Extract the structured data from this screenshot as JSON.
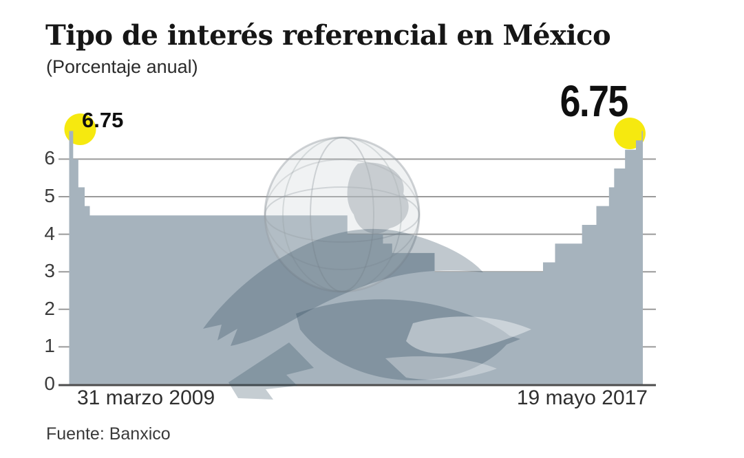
{
  "title": "Tipo de interés referencial en México",
  "subtitle": "(Porcentaje anual)",
  "source": "Fuente: Banxico",
  "annotations": {
    "start_label": "6.75",
    "end_label": "6.75"
  },
  "x_axis": {
    "start_label": "31 marzo 2009",
    "end_label": "19 mayo 2017"
  },
  "y_axis": {
    "tick_labels": [
      "0",
      "1",
      "2",
      "3",
      "4",
      "5",
      "6"
    ]
  },
  "watermark_icon": "eagle-globe-watermark",
  "colors": {
    "area": "#a6b3bd",
    "gridline": "#9a9a9a",
    "axis_line": "#4d4d4d",
    "highlight": "#f6e90f",
    "text": "#161616"
  },
  "chart_data": {
    "type": "area",
    "subtype": "step",
    "title": "Tipo de interés referencial en México",
    "xlabel": "",
    "ylabel": "Porcentaje anual",
    "ylim": [
      0,
      7
    ],
    "x_range_labels": [
      "31 marzo 2009",
      "19 mayo 2017"
    ],
    "grid": true,
    "highlight_points": [
      {
        "position": "start",
        "value": 6.75
      },
      {
        "position": "end",
        "value": 6.75
      }
    ],
    "steps": [
      {
        "x_frac": 0.0,
        "value": 6.75
      },
      {
        "x_frac": 0.007,
        "value": 6.0
      },
      {
        "x_frac": 0.016,
        "value": 5.25
      },
      {
        "x_frac": 0.027,
        "value": 4.75
      },
      {
        "x_frac": 0.036,
        "value": 4.5
      },
      {
        "x_frac": 0.485,
        "value": 4.0
      },
      {
        "x_frac": 0.547,
        "value": 3.75
      },
      {
        "x_frac": 0.563,
        "value": 3.5
      },
      {
        "x_frac": 0.637,
        "value": 3.0
      },
      {
        "x_frac": 0.826,
        "value": 3.25
      },
      {
        "x_frac": 0.847,
        "value": 3.75
      },
      {
        "x_frac": 0.894,
        "value": 4.25
      },
      {
        "x_frac": 0.919,
        "value": 4.75
      },
      {
        "x_frac": 0.941,
        "value": 5.25
      },
      {
        "x_frac": 0.95,
        "value": 5.75
      },
      {
        "x_frac": 0.969,
        "value": 6.25
      },
      {
        "x_frac": 0.988,
        "value": 6.5
      },
      {
        "x_frac": 0.998,
        "value": 6.75
      }
    ]
  }
}
